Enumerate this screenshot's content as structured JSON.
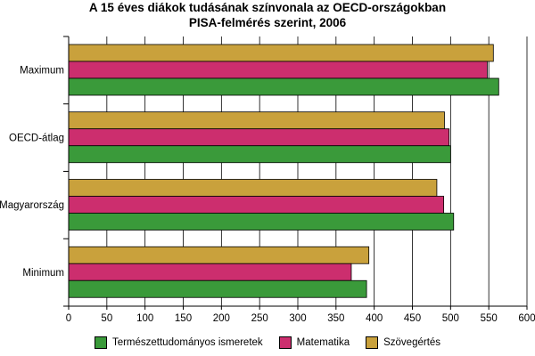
{
  "chart_data": {
    "type": "bar",
    "orientation": "horizontal",
    "title_lines": [
      "A 15 éves diákok tudásának színvonala az OECD-országokban",
      "PISA-felmérés szerint, 2006"
    ],
    "categories": [
      "Maximum",
      "OECD-átlag",
      "Magyarország",
      "Minimum"
    ],
    "series": [
      {
        "name": "Természettudományos ismeretek",
        "color": "#3a9a3a",
        "values": [
          563,
          500,
          504,
          390
        ]
      },
      {
        "name": "Matematika",
        "color": "#cc2e6e",
        "values": [
          548,
          498,
          491,
          370
        ]
      },
      {
        "name": "Szövegértés",
        "color": "#c9a13c",
        "values": [
          556,
          492,
          482,
          393
        ]
      }
    ],
    "xlim": [
      0,
      600
    ],
    "xticks": [
      0,
      50,
      100,
      150,
      200,
      250,
      300,
      350,
      400,
      450,
      500,
      550,
      600
    ],
    "grid": "vertical",
    "legend_position": "bottom"
  }
}
